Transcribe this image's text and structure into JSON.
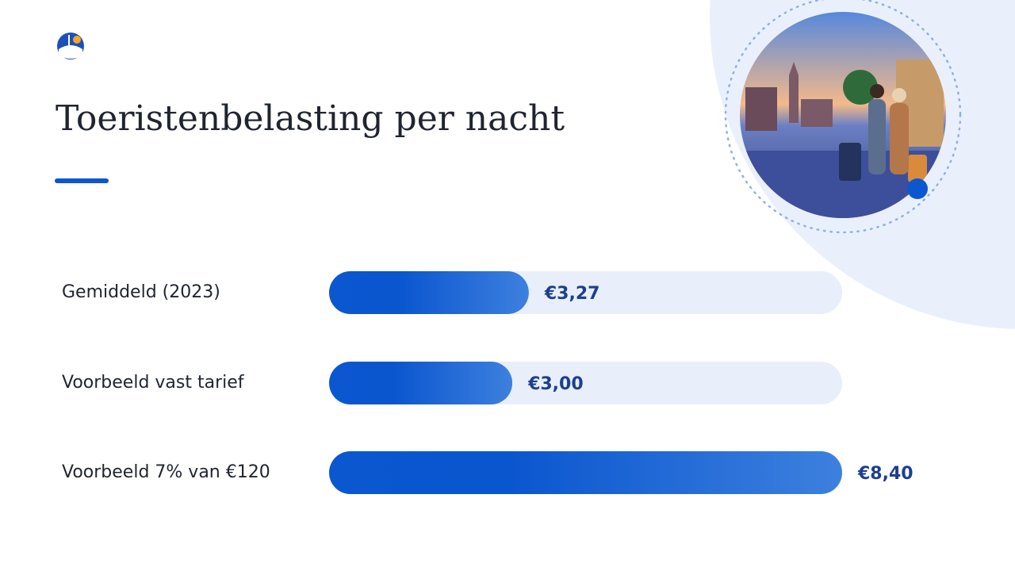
{
  "chart_data": {
    "type": "bar",
    "orientation": "horizontal",
    "title": "Toeristenbelasting per nacht",
    "categories": [
      "Gemiddeld (2023)",
      "Voorbeeld vast tarief",
      "Voorbeeld 7% van €120"
    ],
    "values": [
      3.27,
      3.0,
      8.4
    ],
    "value_labels": [
      "€3,27",
      "€3,00",
      "€8,40"
    ],
    "color": "#0b57d0",
    "xlim": [
      0,
      8.4
    ]
  }
}
